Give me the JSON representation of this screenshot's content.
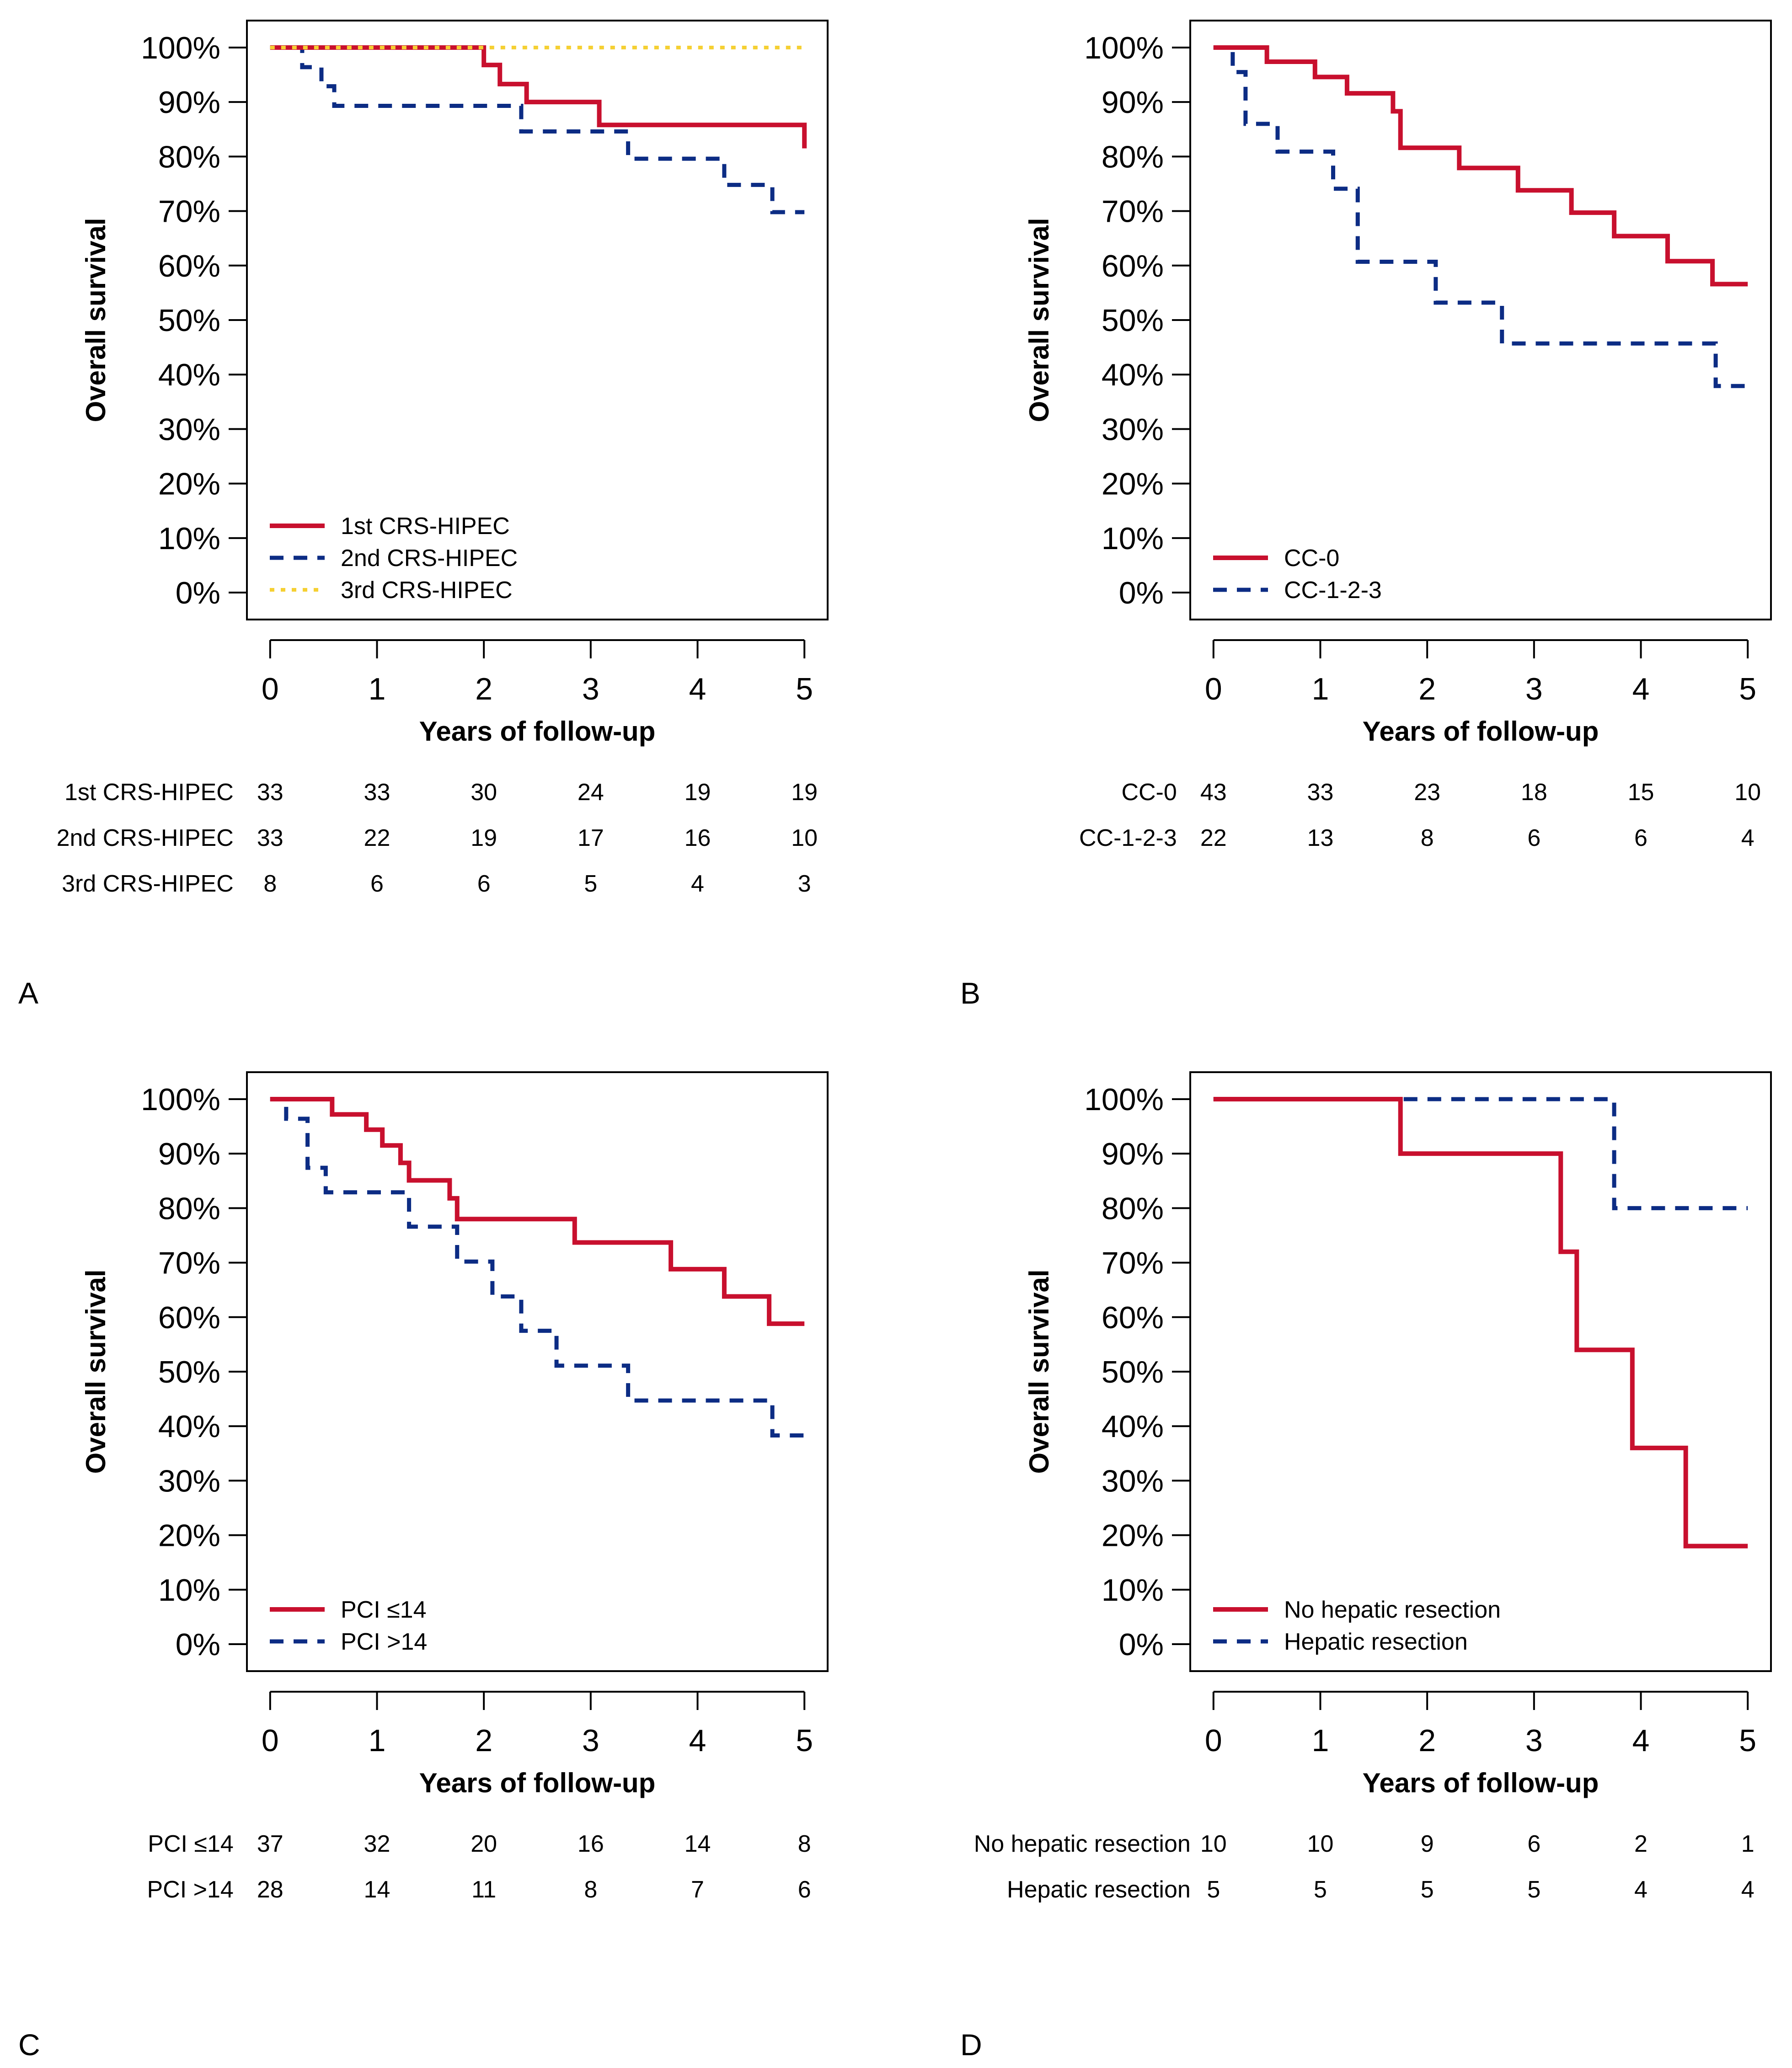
{
  "colors": {
    "red": "#C8102E",
    "navy": "#0C2C84",
    "yellow": "#F5D033",
    "axis": "#000000"
  },
  "chart_data": [
    {
      "panel_letter": "A",
      "type": "line",
      "subtype": "kaplan-meier",
      "xlabel": "Years of follow-up",
      "ylabel": "Overall survival",
      "xlim": [
        0,
        5
      ],
      "ylim": [
        0,
        100
      ],
      "x_ticks": [
        "0",
        "1",
        "2",
        "3",
        "4",
        "5"
      ],
      "y_ticks": [
        "0%",
        "10%",
        "20%",
        "30%",
        "40%",
        "50%",
        "60%",
        "70%",
        "80%",
        "90%",
        "100%"
      ],
      "legend_position": "bottom-left",
      "series": [
        {
          "name": "1st CRS-HIPEC",
          "style": "solid",
          "color": "#C8102E",
          "steps": [
            [
              0,
              100
            ],
            [
              2.0,
              96.8
            ],
            [
              2.15,
              93.3
            ],
            [
              2.4,
              90
            ],
            [
              3.08,
              85.8
            ],
            [
              5.0,
              81.5
            ]
          ]
        },
        {
          "name": "2nd CRS-HIPEC",
          "style": "dashed",
          "color": "#0C2C84",
          "steps": [
            [
              0,
              100
            ],
            [
              0.3,
              96.4
            ],
            [
              0.48,
              92.9
            ],
            [
              0.6,
              89.3
            ],
            [
              2.35,
              84.6
            ],
            [
              3.35,
              79.6
            ],
            [
              4.25,
              74.8
            ],
            [
              4.7,
              69.8
            ]
          ]
        },
        {
          "name": "3rd CRS-HIPEC",
          "style": "dotted",
          "color": "#F5D033",
          "steps": [
            [
              0,
              100
            ]
          ]
        }
      ],
      "risk_table": {
        "rows": [
          {
            "label": "1st CRS-HIPEC",
            "values": [
              "33",
              "33",
              "30",
              "24",
              "19",
              "19"
            ]
          },
          {
            "label": "2nd CRS-HIPEC",
            "values": [
              "33",
              "22",
              "19",
              "17",
              "16",
              "10"
            ]
          },
          {
            "label": "3rd CRS-HIPEC",
            "values": [
              "8",
              "6",
              "6",
              "5",
              "4",
              "3"
            ]
          }
        ]
      }
    },
    {
      "panel_letter": "B",
      "type": "line",
      "subtype": "kaplan-meier",
      "xlabel": "Years of follow-up",
      "ylabel": "Overall survival",
      "xlim": [
        0,
        5
      ],
      "ylim": [
        0,
        100
      ],
      "x_ticks": [
        "0",
        "1",
        "2",
        "3",
        "4",
        "5"
      ],
      "y_ticks": [
        "0%",
        "10%",
        "20%",
        "30%",
        "40%",
        "50%",
        "60%",
        "70%",
        "80%",
        "90%",
        "100%"
      ],
      "legend_position": "bottom-left",
      "series": [
        {
          "name": "CC-0",
          "style": "solid",
          "color": "#C8102E",
          "steps": [
            [
              0,
              100
            ],
            [
              0.5,
              97.4
            ],
            [
              0.95,
              94.6
            ],
            [
              1.25,
              91.6
            ],
            [
              1.68,
              88.3
            ],
            [
              1.75,
              81.6
            ],
            [
              2.3,
              77.9
            ],
            [
              2.85,
              73.8
            ],
            [
              3.35,
              69.7
            ],
            [
              3.75,
              65.4
            ],
            [
              4.25,
              60.8
            ],
            [
              4.67,
              56.6
            ]
          ]
        },
        {
          "name": "CC-1-2-3",
          "style": "dashed",
          "color": "#0C2C84",
          "steps": [
            [
              0,
              100
            ],
            [
              0.18,
              95.5
            ],
            [
              0.3,
              86
            ],
            [
              0.6,
              80.9
            ],
            [
              1.12,
              74.1
            ],
            [
              1.35,
              60.7
            ],
            [
              2.08,
              53.2
            ],
            [
              2.7,
              45.7
            ],
            [
              4.7,
              37.9
            ]
          ]
        }
      ],
      "risk_table": {
        "rows": [
          {
            "label": "CC-0",
            "values": [
              "43",
              "33",
              "23",
              "18",
              "15",
              "10"
            ]
          },
          {
            "label": "CC-1-2-3",
            "values": [
              "22",
              "13",
              "8",
              "6",
              "6",
              "4"
            ]
          }
        ]
      }
    },
    {
      "panel_letter": "C",
      "type": "line",
      "subtype": "kaplan-meier",
      "xlabel": "Years of follow-up",
      "ylabel": "Overall survival",
      "xlim": [
        0,
        5
      ],
      "ylim": [
        0,
        100
      ],
      "x_ticks": [
        "0",
        "1",
        "2",
        "3",
        "4",
        "5"
      ],
      "y_ticks": [
        "0%",
        "10%",
        "20%",
        "30%",
        "40%",
        "50%",
        "60%",
        "70%",
        "80%",
        "90%",
        "100%"
      ],
      "legend_position": "bottom-left",
      "series": [
        {
          "name": "PCI ≤14",
          "style": "solid",
          "color": "#C8102E",
          "steps": [
            [
              0,
              100
            ],
            [
              0.58,
              97.2
            ],
            [
              0.9,
              94.4
            ],
            [
              1.05,
              91.5
            ],
            [
              1.22,
              88.3
            ],
            [
              1.3,
              85.1
            ],
            [
              1.68,
              81.8
            ],
            [
              1.75,
              78
            ],
            [
              2.85,
              73.7
            ],
            [
              3.75,
              68.8
            ],
            [
              4.25,
              63.8
            ],
            [
              4.67,
              58.8
            ]
          ]
        },
        {
          "name": "PCI >14",
          "style": "dashed",
          "color": "#0C2C84",
          "steps": [
            [
              0,
              100
            ],
            [
              0.15,
              96.4
            ],
            [
              0.35,
              87.4
            ],
            [
              0.52,
              82.9
            ],
            [
              1.3,
              76.6
            ],
            [
              1.75,
              70.2
            ],
            [
              2.08,
              63.8
            ],
            [
              2.35,
              57.5
            ],
            [
              2.68,
              51.1
            ],
            [
              3.35,
              44.7
            ],
            [
              4.7,
              38.3
            ]
          ]
        }
      ],
      "risk_table": {
        "rows": [
          {
            "label": "PCI ≤14",
            "values": [
              "37",
              "32",
              "20",
              "16",
              "14",
              "8"
            ]
          },
          {
            "label": "PCI >14",
            "values": [
              "28",
              "14",
              "11",
              "8",
              "7",
              "6"
            ]
          }
        ]
      }
    },
    {
      "panel_letter": "D",
      "type": "line",
      "subtype": "kaplan-meier",
      "xlabel": "Years of follow-up",
      "ylabel": "Overall survival",
      "xlim": [
        0,
        5
      ],
      "ylim": [
        0,
        100
      ],
      "x_ticks": [
        "0",
        "1",
        "2",
        "3",
        "4",
        "5"
      ],
      "y_ticks": [
        "0%",
        "10%",
        "20%",
        "30%",
        "40%",
        "50%",
        "60%",
        "70%",
        "80%",
        "90%",
        "100%"
      ],
      "legend_position": "bottom-left",
      "series": [
        {
          "name": "No hepatic resection",
          "style": "solid",
          "color": "#C8102E",
          "steps": [
            [
              0,
              100
            ],
            [
              1.75,
              90
            ],
            [
              3.25,
              72
            ],
            [
              3.4,
              54
            ],
            [
              3.92,
              36
            ],
            [
              4.42,
              18
            ]
          ]
        },
        {
          "name": "Hepatic resection",
          "style": "dashed",
          "color": "#0C2C84",
          "steps": [
            [
              0,
              100
            ],
            [
              3.75,
              80
            ]
          ]
        }
      ],
      "risk_table": {
        "rows": [
          {
            "label": "No hepatic resection",
            "values": [
              "10",
              "10",
              "9",
              "6",
              "2",
              "1"
            ]
          },
          {
            "label": "Hepatic resection",
            "values": [
              "5",
              "5",
              "5",
              "5",
              "4",
              "4"
            ]
          }
        ]
      }
    }
  ]
}
